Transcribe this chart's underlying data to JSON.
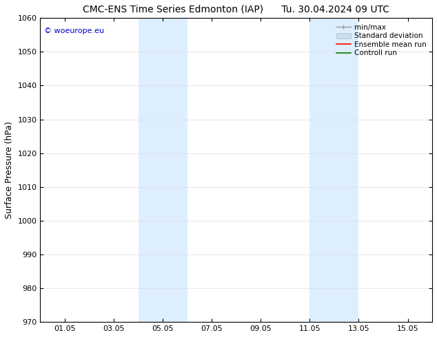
{
  "title_left": "CMC-ENS Time Series Edmonton (IAP)",
  "title_right": "Tu. 30.04.2024 09 UTC",
  "ylabel": "Surface Pressure (hPa)",
  "ylim": [
    970,
    1060
  ],
  "yticks": [
    970,
    980,
    990,
    1000,
    1010,
    1020,
    1030,
    1040,
    1050,
    1060
  ],
  "xtick_labels": [
    "01.05",
    "03.05",
    "05.05",
    "07.05",
    "09.05",
    "11.05",
    "13.05",
    "15.05"
  ],
  "xtick_positions": [
    1,
    3,
    5,
    7,
    9,
    11,
    13,
    15
  ],
  "xlim": [
    0,
    16
  ],
  "shaded_bands": [
    {
      "x_start": 4,
      "x_end": 6,
      "color": "#ddeeff"
    },
    {
      "x_start": 11,
      "x_end": 13,
      "color": "#ddeeff"
    }
  ],
  "watermark_text": "© woeurope.eu",
  "watermark_color": "#0000cc",
  "background_color": "#ffffff",
  "legend_entries": [
    {
      "label": "min/max",
      "color": "#aaaaaa"
    },
    {
      "label": "Standard deviation",
      "color": "#ccddee"
    },
    {
      "label": "Ensemble mean run",
      "color": "#ff0000"
    },
    {
      "label": "Controll run",
      "color": "#008000"
    }
  ],
  "font_size_title": 10,
  "font_size_ylabel": 9,
  "font_size_legend": 7.5,
  "font_size_ticks": 8,
  "font_size_watermark": 8
}
